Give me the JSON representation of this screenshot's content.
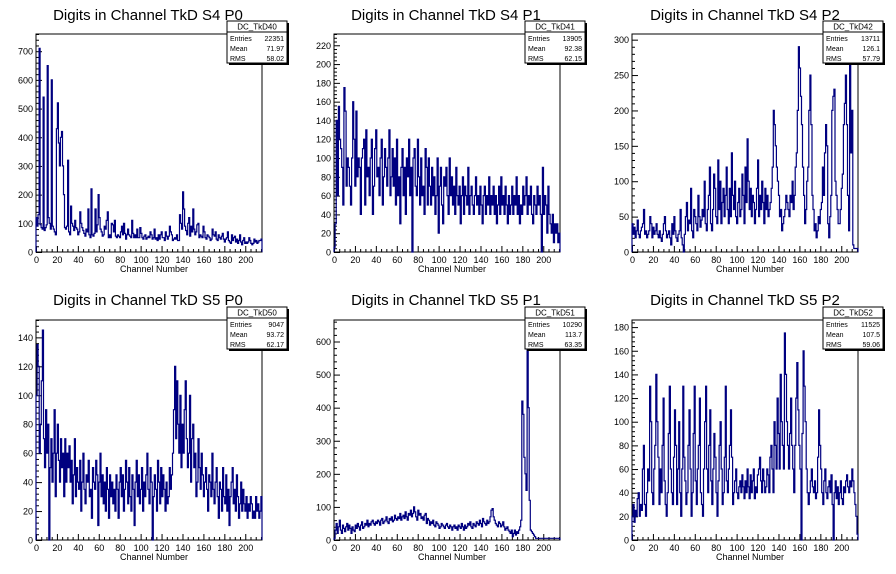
{
  "chart_data": [
    {
      "type": "histogram",
      "name": "DC_TkD40",
      "title": "Digits in Channel TkD S4 P0",
      "xlabel": "Channel Number",
      "ylabel": "",
      "xlim": [
        0,
        216
      ],
      "ylim": [
        0,
        760
      ],
      "yticks": [
        100,
        200,
        300,
        400,
        500,
        600,
        700
      ],
      "stats": {
        "name": "DC_TkD40",
        "rows": [
          [
            "Entries",
            "22351"
          ],
          [
            "Mean",
            "71.97"
          ],
          [
            "RMS",
            "58.02"
          ]
        ]
      },
      "values": [
        120,
        90,
        130,
        710,
        95,
        85,
        80,
        540,
        75,
        85,
        95,
        650,
        120,
        100,
        80,
        600,
        90,
        80,
        70,
        60,
        430,
        520,
        380,
        300,
        400,
        420,
        300,
        200,
        85,
        80,
        90,
        320,
        70,
        60,
        160,
        100,
        90,
        75,
        110,
        85,
        80,
        60,
        70,
        140,
        100,
        85,
        75,
        65,
        55,
        80,
        70,
        150,
        60,
        50,
        220,
        60,
        55,
        65,
        150,
        70,
        95,
        200,
        120,
        80,
        70,
        55,
        60,
        90,
        80,
        110,
        140,
        50,
        60,
        50,
        100,
        95,
        70,
        110,
        55,
        50,
        60,
        55,
        50,
        70,
        90,
        60,
        100,
        65,
        45,
        60,
        80,
        60,
        55,
        50,
        110,
        65,
        50,
        60,
        50,
        80,
        50,
        50,
        85,
        65,
        50,
        45,
        55,
        60,
        45,
        50,
        55,
        50,
        70,
        60,
        45,
        50,
        80,
        45,
        50,
        40,
        60,
        45,
        60,
        70,
        50,
        50,
        40,
        70,
        55,
        45,
        55,
        90,
        70,
        60,
        40,
        45,
        50,
        45,
        60,
        40,
        40,
        130,
        100,
        80,
        210,
        150,
        90,
        75,
        60,
        100,
        120,
        55,
        90,
        70,
        150,
        80,
        60,
        70,
        95,
        100,
        50,
        60,
        55,
        50,
        90,
        70,
        50,
        45,
        60,
        55,
        50,
        40,
        45,
        80,
        60,
        55,
        70,
        45,
        40,
        60,
        50,
        45,
        55,
        65,
        45,
        35,
        45,
        50,
        70,
        40,
        35,
        30,
        60,
        40,
        50,
        55,
        35,
        45,
        30,
        40,
        60,
        35,
        25,
        40,
        50,
        30,
        35,
        30,
        35,
        50,
        40,
        30,
        25,
        30,
        45,
        35,
        40,
        30,
        35,
        40,
        40,
        45
      ]
    },
    {
      "type": "histogram",
      "name": "DC_TkD41",
      "title": "Digits in Channel TkD S4 P1",
      "xlabel": "Channel Number",
      "ylabel": "",
      "xlim": [
        0,
        216
      ],
      "ylim": [
        0,
        232
      ],
      "yticks": [
        20,
        40,
        60,
        80,
        100,
        120,
        140,
        160,
        180,
        200,
        220
      ],
      "stats": {
        "name": "DC_TkD41",
        "rows": [
          [
            "Entries",
            "13905"
          ],
          [
            "Mean",
            "92.38"
          ],
          [
            "RMS",
            "62.15"
          ]
        ]
      },
      "values": [
        5,
        30,
        140,
        60,
        155,
        120,
        110,
        90,
        50,
        175,
        150,
        70,
        100,
        90,
        70,
        50,
        100,
        160,
        120,
        70,
        150,
        80,
        100,
        90,
        40,
        100,
        110,
        120,
        50,
        130,
        80,
        90,
        60,
        100,
        120,
        40,
        70,
        110,
        130,
        80,
        90,
        60,
        100,
        120,
        50,
        80,
        110,
        90,
        70,
        100,
        130,
        60,
        80,
        110,
        70,
        100,
        50,
        120,
        60,
        80,
        30,
        90,
        110,
        60,
        90,
        40,
        100,
        80,
        120,
        60,
        90,
        0,
        100,
        110,
        70,
        60,
        120,
        80,
        50,
        100,
        60,
        70,
        40,
        110,
        90,
        50,
        100,
        70,
        50,
        90,
        60,
        80,
        40,
        60,
        100,
        20,
        70,
        90,
        50,
        30,
        80,
        70,
        90,
        60,
        40,
        100,
        60,
        80,
        50,
        70,
        40,
        90,
        60,
        50,
        70,
        30,
        60,
        80,
        40,
        70,
        60,
        50,
        90,
        40,
        60,
        70,
        50,
        40,
        60,
        80,
        50,
        60,
        40,
        70,
        50,
        30,
        60,
        70,
        40,
        60,
        50,
        80,
        40,
        60,
        50,
        70,
        40,
        60,
        30,
        50,
        70,
        40,
        80,
        50,
        60,
        40,
        70,
        50,
        30,
        60,
        40,
        50,
        70,
        40,
        60,
        50,
        80,
        40,
        60,
        30,
        50,
        40,
        70,
        50,
        60,
        80,
        40,
        60,
        50,
        70,
        40,
        30,
        60,
        50,
        40,
        70,
        50,
        60,
        40,
        0,
        90,
        40,
        60,
        50,
        20,
        70,
        40,
        30,
        20,
        40,
        10,
        30,
        20,
        30,
        10,
        20
      ]
    },
    {
      "type": "histogram",
      "name": "DC_TkD42",
      "title": "Digits in Channel TkD S4 P2",
      "xlabel": "Channel Number",
      "ylabel": "",
      "xlim": [
        0,
        216
      ],
      "ylim": [
        0,
        308
      ],
      "yticks": [
        50,
        100,
        150,
        200,
        250,
        300
      ],
      "stats": {
        "name": "DC_TkD42",
        "rows": [
          [
            "Entries",
            "13711"
          ],
          [
            "Mean",
            "126.1"
          ],
          [
            "RMS",
            "57.79"
          ]
        ]
      },
      "values": [
        40,
        25,
        35,
        20,
        30,
        45,
        25,
        20,
        30,
        35,
        40,
        60,
        25,
        30,
        20,
        25,
        30,
        50,
        40,
        20,
        35,
        25,
        30,
        40,
        25,
        20,
        30,
        20,
        15,
        25,
        40,
        50,
        30,
        20,
        25,
        30,
        20,
        10,
        40,
        25,
        50,
        30,
        20,
        15,
        25,
        30,
        60,
        20,
        10,
        0,
        25,
        50,
        70,
        30,
        45,
        40,
        90,
        30,
        20,
        60,
        50,
        40,
        30,
        80,
        50,
        35,
        45,
        60,
        50,
        100,
        40,
        30,
        60,
        80,
        120,
        40,
        30,
        60,
        110,
        90,
        50,
        40,
        130,
        60,
        100,
        40,
        70,
        90,
        50,
        80,
        120,
        60,
        40,
        90,
        50,
        140,
        80,
        60,
        100,
        50,
        40,
        70,
        90,
        50,
        60,
        110,
        80,
        40,
        120,
        70,
        160,
        100,
        60,
        90,
        50,
        80,
        70,
        40,
        60,
        90,
        130,
        50,
        80,
        60,
        100,
        70,
        40,
        90,
        60,
        80,
        50,
        60,
        70,
        90,
        120,
        200,
        180,
        150,
        120,
        100,
        80,
        50,
        60,
        30,
        40,
        50,
        60,
        80,
        70,
        60,
        50,
        80,
        70,
        100,
        60,
        80,
        120,
        140,
        200,
        290,
        260,
        220,
        180,
        120,
        80,
        40,
        60,
        100,
        120,
        200,
        250,
        180,
        80,
        60,
        30,
        40,
        20,
        30,
        50,
        40,
        60,
        70,
        120,
        80,
        140,
        180,
        150,
        40,
        20,
        50,
        80,
        200,
        220,
        230,
        100,
        80,
        60,
        40,
        40,
        60,
        90,
        110,
        180,
        210,
        250,
        180,
        80,
        30,
        280,
        140,
        200,
        10,
        5,
        5,
        5,
        5
      ]
    },
    {
      "type": "histogram",
      "name": "DC_TkD50",
      "title": "Digits in Channel TkD S5 P0",
      "xlabel": "Channel Number",
      "ylabel": "",
      "xlim": [
        0,
        216
      ],
      "ylim": [
        0,
        152
      ],
      "yticks": [
        20,
        40,
        60,
        80,
        100,
        120,
        140
      ],
      "stats": {
        "name": "DC_TkD50",
        "rows": [
          [
            "Entries",
            "9047"
          ],
          [
            "Mean",
            "93.72"
          ],
          [
            "RMS",
            "62.17"
          ]
        ]
      },
      "values": [
        100,
        135,
        120,
        60,
        80,
        110,
        145,
        70,
        50,
        90,
        60,
        80,
        0,
        50,
        70,
        40,
        60,
        90,
        30,
        60,
        80,
        55,
        40,
        70,
        50,
        60,
        30,
        70,
        40,
        60,
        50,
        65,
        40,
        55,
        25,
        45,
        70,
        30,
        50,
        40,
        35,
        55,
        20,
        40,
        60,
        35,
        25,
        45,
        40,
        55,
        30,
        35,
        15,
        50,
        40,
        35,
        55,
        45,
        10,
        40,
        60,
        30,
        45,
        25,
        40,
        20,
        50,
        35,
        15,
        45,
        30,
        40,
        25,
        35,
        20,
        45,
        35,
        15,
        40,
        50,
        30,
        45,
        20,
        35,
        55,
        40,
        25,
        50,
        30,
        20,
        45,
        35,
        10,
        40,
        55,
        30,
        45,
        25,
        35,
        50,
        20,
        40,
        30,
        45,
        60,
        35,
        25,
        50,
        40,
        0,
        30,
        45,
        35,
        20,
        55,
        40,
        25,
        50,
        30,
        45,
        35,
        20,
        40,
        25,
        30,
        50,
        35,
        45,
        60,
        90,
        120,
        70,
        110,
        80,
        60,
        100,
        50,
        80,
        60,
        90,
        110,
        70,
        50,
        60,
        100,
        40,
        70,
        80,
        50,
        60,
        30,
        40,
        70,
        50,
        35,
        60,
        45,
        30,
        40,
        50,
        35,
        20,
        45,
        40,
        30,
        60,
        35,
        25,
        40,
        50,
        30,
        15,
        40,
        35,
        20,
        50,
        30,
        25,
        45,
        20,
        35,
        10,
        30,
        40,
        50,
        25,
        35,
        20,
        45,
        30,
        15,
        25,
        40,
        20,
        35,
        25,
        20,
        30,
        15,
        25,
        20,
        30,
        25,
        15,
        20,
        15,
        30,
        20,
        25,
        15,
        20,
        30
      ]
    },
    {
      "type": "histogram",
      "name": "DC_TkD51",
      "title": "Digits in Channel TkD S5 P1",
      "xlabel": "Channel Number",
      "ylabel": "",
      "xlim": [
        0,
        216
      ],
      "ylim": [
        0,
        665
      ],
      "yticks": [
        100,
        200,
        300,
        400,
        500,
        600
      ],
      "stats": {
        "name": "DC_TkD51",
        "rows": [
          [
            "Entries",
            "10290"
          ],
          [
            "Mean",
            "113.7"
          ],
          [
            "RMS",
            "63.35"
          ]
        ]
      },
      "values": [
        5,
        30,
        50,
        20,
        40,
        60,
        30,
        20,
        45,
        35,
        25,
        40,
        50,
        30,
        45,
        35,
        20,
        40,
        30,
        25,
        45,
        35,
        50,
        40,
        30,
        45,
        55,
        35,
        40,
        50,
        45,
        60,
        40,
        50,
        45,
        55,
        60,
        50,
        45,
        55,
        50,
        60,
        55,
        45,
        60,
        65,
        50,
        55,
        60,
        70,
        55,
        50,
        65,
        60,
        70,
        55,
        60,
        75,
        65,
        60,
        70,
        65,
        80,
        60,
        70,
        75,
        65,
        85,
        70,
        60,
        80,
        75,
        90,
        70,
        80,
        100,
        85,
        70,
        60,
        90,
        75,
        80,
        65,
        70,
        60,
        75,
        80,
        50,
        65,
        60,
        45,
        55,
        50,
        60,
        45,
        40,
        55,
        50,
        45,
        35,
        40,
        50,
        45,
        40,
        35,
        45,
        50,
        40,
        35,
        45,
        40,
        30,
        40,
        45,
        35,
        40,
        30,
        45,
        40,
        35,
        50,
        40,
        30,
        45,
        35,
        40,
        50,
        45,
        55,
        40,
        35,
        50,
        45,
        40,
        55,
        50,
        45,
        60,
        50,
        40,
        65,
        55,
        50,
        45,
        60,
        50,
        55,
        70,
        90,
        95,
        70,
        60,
        50,
        45,
        40,
        55,
        50,
        40,
        45,
        55,
        40,
        30,
        35,
        40,
        30,
        25,
        20,
        30,
        10,
        20,
        30,
        15,
        25,
        20,
        30,
        40,
        60,
        420,
        380,
        250,
        200,
        150,
        610,
        400,
        120,
        30,
        25,
        20,
        15,
        10,
        5,
        5,
        5,
        5,
        5,
        5,
        5,
        5,
        5,
        5,
        5,
        5,
        5,
        5,
        5,
        5,
        5,
        5,
        5,
        5,
        5,
        5,
        5
      ]
    },
    {
      "type": "histogram",
      "name": "DC_TkD52",
      "title": "Digits in Channel TkD S5 P2",
      "xlabel": "Channel Number",
      "ylabel": "",
      "xlim": [
        0,
        216
      ],
      "ylim": [
        0,
        186
      ],
      "yticks": [
        20,
        40,
        60,
        80,
        100,
        120,
        140,
        160,
        180
      ],
      "stats": {
        "name": "DC_TkD52",
        "rows": [
          [
            "Entries",
            "11525"
          ],
          [
            "Mean",
            "107.5"
          ],
          [
            "RMS",
            "59.06"
          ]
        ]
      },
      "values": [
        20,
        30,
        15,
        25,
        20,
        35,
        40,
        20,
        30,
        25,
        60,
        80,
        30,
        20,
        40,
        60,
        50,
        130,
        100,
        40,
        30,
        60,
        80,
        140,
        100,
        70,
        30,
        60,
        40,
        80,
        120,
        50,
        30,
        20,
        40,
        90,
        130,
        60,
        40,
        30,
        70,
        110,
        80,
        30,
        60,
        100,
        40,
        20,
        60,
        130,
        70,
        50,
        30,
        40,
        80,
        110,
        60,
        20,
        40,
        90,
        130,
        50,
        30,
        60,
        80,
        120,
        40,
        30,
        20,
        60,
        100,
        130,
        60,
        40,
        80,
        110,
        50,
        30,
        60,
        90,
        70,
        40,
        20,
        50,
        80,
        100,
        60,
        30,
        40,
        70,
        130,
        50,
        40,
        60,
        80,
        110,
        70,
        30,
        40,
        50,
        60,
        40,
        35,
        45,
        50,
        40,
        55,
        45,
        35,
        50,
        40,
        60,
        45,
        35,
        55,
        40,
        50,
        60,
        35,
        45,
        40,
        55,
        60,
        70,
        50,
        40,
        60,
        50,
        40,
        45,
        60,
        55,
        40,
        70,
        80,
        60,
        40,
        100,
        80,
        60,
        120,
        90,
        60,
        140,
        100,
        80,
        60,
        175,
        140,
        100,
        80,
        60,
        90,
        120,
        80,
        60,
        40,
        80,
        120,
        150,
        110,
        80,
        60,
        0,
        90,
        160,
        130,
        100,
        60,
        40,
        30,
        40,
        50,
        60,
        45,
        40,
        50,
        35,
        40,
        70,
        110,
        80,
        60,
        40,
        30,
        50,
        60,
        40,
        35,
        45,
        50,
        40,
        55,
        30,
        0,
        40,
        50,
        35,
        45,
        30,
        40,
        50,
        35,
        30,
        45,
        40,
        50,
        55,
        45,
        40,
        50,
        45,
        60,
        50,
        40,
        30,
        20,
        5
      ]
    }
  ]
}
